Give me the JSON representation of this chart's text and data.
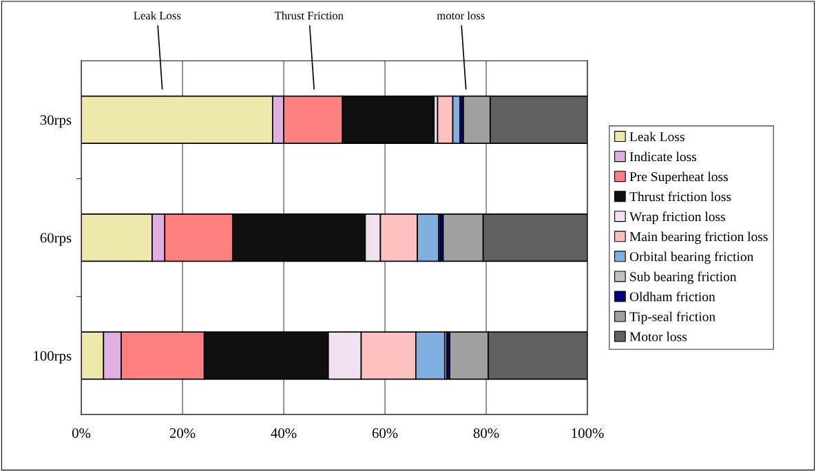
{
  "chart_data": {
    "type": "bar",
    "orientation": "horizontal",
    "stacked": true,
    "categories": [
      "30rps",
      "60rps",
      "100rps"
    ],
    "series": [
      {
        "name": "Leak Loss",
        "color": "#eee8aa",
        "values": [
          37.8,
          14.0,
          4.4
        ]
      },
      {
        "name": "Indicate loss",
        "color": "#e0b0e0",
        "values": [
          2.2,
          2.5,
          3.5
        ]
      },
      {
        "name": "Pre Superheat loss",
        "color": "#ff8080",
        "values": [
          11.6,
          13.4,
          16.4
        ]
      },
      {
        "name": "Thrust friction loss",
        "color": "#101010",
        "values": [
          18.1,
          26.2,
          24.5
        ]
      },
      {
        "name": "Wrap friction loss",
        "color": "#f0e0f0",
        "values": [
          0.7,
          3.0,
          6.5
        ]
      },
      {
        "name": "Main bearing friction loss",
        "color": "#ffc0c0",
        "values": [
          3.0,
          7.3,
          10.8
        ]
      },
      {
        "name": "Orbital bearing friction",
        "color": "#80b0e0",
        "values": [
          1.4,
          4.2,
          5.7
        ]
      },
      {
        "name": "Sub bearing friction",
        "color": "#c0c0c0",
        "values": [
          null,
          0.3,
          0.4
        ]
      },
      {
        "name": "Oldham friction",
        "color": "#000080",
        "values": [
          0.7,
          0.6,
          0.6
        ]
      },
      {
        "name": "Tip-seal friction",
        "color": "#a0a0a0",
        "values": [
          5.3,
          7.9,
          7.6
        ]
      },
      {
        "name": "Motor loss",
        "color": "#606060",
        "values": [
          19.2,
          20.6,
          19.6
        ]
      }
    ],
    "xlim": [
      0,
      100
    ],
    "xticks": [
      {
        "value": 0,
        "label": "0%"
      },
      {
        "value": 20,
        "label": "20%"
      },
      {
        "value": 40,
        "label": "40%"
      },
      {
        "value": 60,
        "label": "60%"
      },
      {
        "value": 80,
        "label": "80%"
      },
      {
        "value": 100,
        "label": "100%"
      }
    ],
    "grid": "x",
    "legend": "right",
    "annotations": [
      "Leak Loss",
      "Thrust Friction",
      "motor loss"
    ]
  }
}
